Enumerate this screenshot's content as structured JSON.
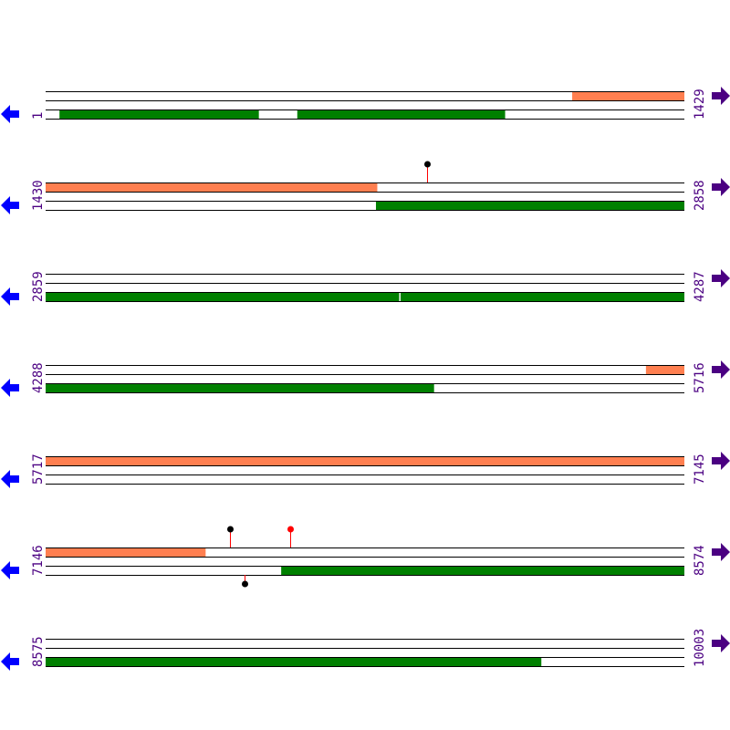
{
  "colors": {
    "forward_feature": "#ff7f50",
    "reverse_feature": "#008000",
    "line": "#000000",
    "label": "#4b0082",
    "left_arrow": "#0000ff",
    "right_arrow": "#4b0082",
    "marker_black": "#000000",
    "marker_red": "#ff0000",
    "pin": "#ff0000"
  },
  "icons": {
    "left": "arrow-left-icon",
    "right": "arrow-right-icon"
  },
  "rows": [
    {
      "start": "1",
      "end": "1429",
      "s": 1,
      "e": 1429,
      "top": [
        [
          1179,
          1429
        ]
      ],
      "bottom": [
        [
          32,
          477
        ],
        [
          564,
          1028
        ]
      ],
      "markers": []
    },
    {
      "start": "1430",
      "end": "2858",
      "s": 1430,
      "e": 2858,
      "top": [
        [
          1430,
          2171
        ]
      ],
      "bottom": [
        [
          2169,
          2858
        ]
      ],
      "markers": [
        {
          "pos": 2283,
          "strand": "top",
          "color": "black"
        }
      ]
    },
    {
      "start": "2859",
      "end": "4287",
      "s": 2859,
      "e": 4287,
      "top": [],
      "bottom": [
        [
          2859,
          3649
        ],
        [
          3653,
          4287
        ]
      ],
      "markers": []
    },
    {
      "start": "4288",
      "end": "5716",
      "s": 4288,
      "e": 5716,
      "top": [
        [
          5631,
          5716
        ]
      ],
      "bottom": [
        [
          4288,
          5156
        ]
      ],
      "markers": []
    },
    {
      "start": "5717",
      "end": "7145",
      "s": 5717,
      "e": 7145,
      "top": [
        [
          5717,
          7145
        ]
      ],
      "bottom": [],
      "markers": []
    },
    {
      "start": "7146",
      "end": "8574",
      "s": 7146,
      "e": 8574,
      "top": [
        [
          7146,
          7503
        ]
      ],
      "bottom": [
        [
          7673,
          8574
        ]
      ],
      "markers": [
        {
          "pos": 7558,
          "strand": "top",
          "color": "black"
        },
        {
          "pos": 7693,
          "strand": "top",
          "color": "red"
        },
        {
          "pos": 7591,
          "strand": "bottom",
          "color": "black"
        }
      ]
    },
    {
      "start": "8575",
      "end": "10003",
      "s": 8575,
      "e": 10003,
      "top": [],
      "bottom": [
        [
          8575,
          9683
        ]
      ],
      "markers": []
    }
  ]
}
